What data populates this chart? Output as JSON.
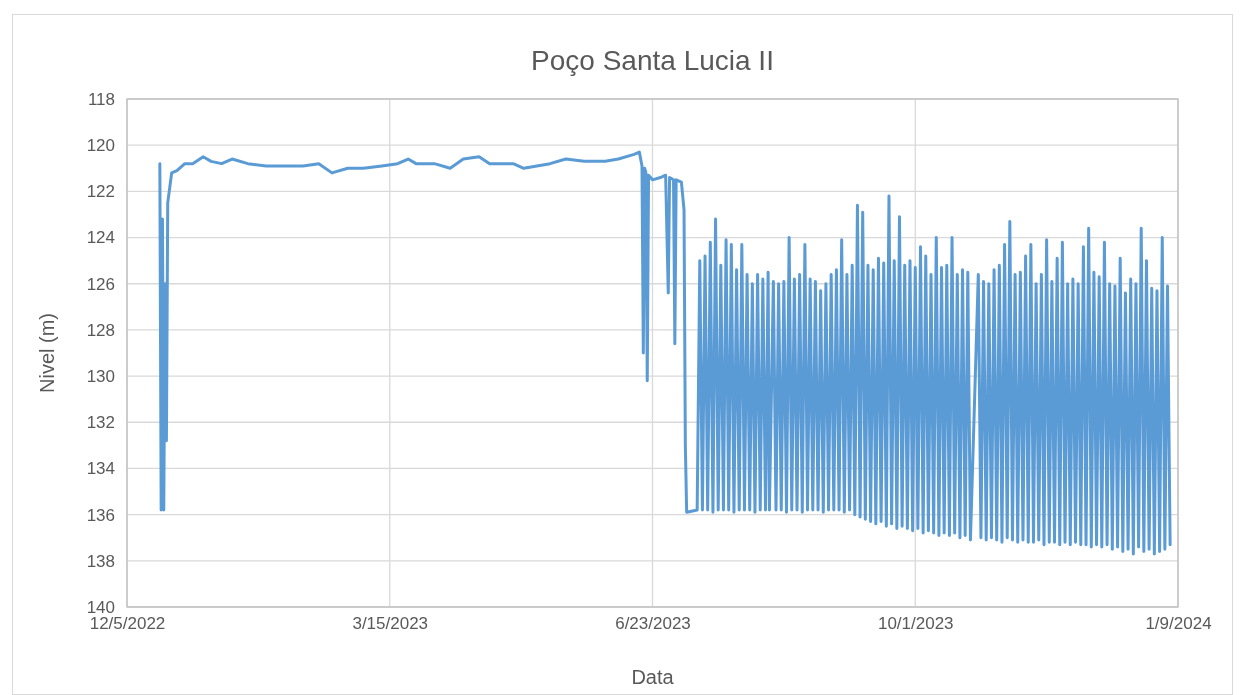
{
  "chart_data": {
    "type": "line",
    "title": "Poço Santa Lucia II",
    "xlabel": "Data",
    "ylabel": "Nivel (m)",
    "xlim": [
      "2022-12-05",
      "2024-01-09"
    ],
    "xticks": [
      {
        "value": "2022-12-05",
        "label": "12/5/2022"
      },
      {
        "value": "2023-03-15",
        "label": "3/15/2023"
      },
      {
        "value": "2023-06-23",
        "label": "6/23/2023"
      },
      {
        "value": "2023-10-01",
        "label": "10/1/2023"
      },
      {
        "value": "2024-01-09",
        "label": "1/9/2024"
      }
    ],
    "ylim": [
      140,
      118
    ],
    "yticks": [
      118,
      120,
      122,
      124,
      126,
      128,
      130,
      132,
      134,
      136,
      138,
      140
    ],
    "grid": true,
    "marker": "none",
    "line_style": "solid",
    "series": [
      {
        "color": "#5b9bd5",
        "x": [
          "2022-12-17T12:00",
          "2022-12-18T00:00",
          "2022-12-18T12:00",
          "2022-12-19T00:00",
          "2022-12-19T12:00",
          "2022-12-20T00:00",
          "2022-12-20T12:00",
          "2022-12-22",
          "2022-12-24",
          "2022-12-27",
          "2022-12-30",
          "2023-01-03",
          "2023-01-06",
          "2023-01-10",
          "2023-01-14",
          "2023-01-20",
          "2023-01-27",
          "2023-02-03",
          "2023-02-10",
          "2023-02-16",
          "2023-02-21",
          "2023-02-27",
          "2023-03-05",
          "2023-03-12",
          "2023-03-18",
          "2023-03-22",
          "2023-03-25",
          "2023-04-01",
          "2023-04-07",
          "2023-04-12",
          "2023-04-18",
          "2023-04-22",
          "2023-05-01",
          "2023-05-05",
          "2023-05-15",
          "2023-05-21",
          "2023-05-28",
          "2023-06-05",
          "2023-06-10",
          "2023-06-16",
          "2023-06-18",
          "2023-06-19",
          "2023-06-19T12:00",
          "2023-06-20",
          "2023-06-20T12:00",
          "2023-06-21",
          "2023-06-21T12:00",
          "2023-06-23",
          "2023-06-26",
          "2023-06-28",
          "2023-06-29",
          "2023-06-29T12:00",
          "2023-07-01",
          "2023-07-01T12:00",
          "2023-07-02",
          "2023-07-04",
          "2023-07-05",
          "2023-07-05T12:00",
          "2023-07-06",
          "2023-07-10",
          "2023-07-11",
          "2023-07-12",
          "2023-07-13",
          "2023-07-14",
          "2023-07-15",
          "2023-07-16",
          "2023-07-17",
          "2023-07-18",
          "2023-07-19",
          "2023-07-20",
          "2023-07-21",
          "2023-07-22",
          "2023-07-23",
          "2023-07-24",
          "2023-07-25",
          "2023-07-26",
          "2023-07-27",
          "2023-07-28",
          "2023-07-29",
          "2023-07-30",
          "2023-07-31",
          "2023-08-01",
          "2023-08-02",
          "2023-08-03",
          "2023-08-04",
          "2023-08-05",
          "2023-08-06",
          "2023-08-06T12:00",
          "2023-08-08",
          "2023-08-09",
          "2023-08-10",
          "2023-08-11",
          "2023-08-12",
          "2023-08-13",
          "2023-08-14",
          "2023-08-15",
          "2023-08-16",
          "2023-08-17",
          "2023-08-18",
          "2023-08-19",
          "2023-08-20",
          "2023-08-21",
          "2023-08-22",
          "2023-08-23",
          "2023-08-24",
          "2023-08-25",
          "2023-08-26",
          "2023-08-27",
          "2023-08-28",
          "2023-08-29",
          "2023-08-30",
          "2023-08-31",
          "2023-09-01",
          "2023-09-02",
          "2023-09-03",
          "2023-09-04",
          "2023-09-05",
          "2023-09-06",
          "2023-09-07",
          "2023-09-08",
          "2023-09-09",
          "2023-09-10",
          "2023-09-11",
          "2023-09-12",
          "2023-09-13",
          "2023-09-14",
          "2023-09-15",
          "2023-09-16",
          "2023-09-17",
          "2023-09-18",
          "2023-09-19",
          "2023-09-20",
          "2023-09-21",
          "2023-09-22",
          "2023-09-23",
          "2023-09-24",
          "2023-09-25",
          "2023-09-26",
          "2023-09-27",
          "2023-09-28",
          "2023-09-29",
          "2023-09-30",
          "2023-10-01",
          "2023-10-02",
          "2023-10-03",
          "2023-10-04",
          "2023-10-05",
          "2023-10-06",
          "2023-10-07",
          "2023-10-08",
          "2023-10-09",
          "2023-10-10",
          "2023-10-11",
          "2023-10-12",
          "2023-10-13",
          "2023-10-14",
          "2023-10-15",
          "2023-10-16",
          "2023-10-17",
          "2023-10-18",
          "2023-10-19",
          "2023-10-20",
          "2023-10-21",
          "2023-10-22",
          "2023-10-25",
          "2023-10-26",
          "2023-10-27",
          "2023-10-28",
          "2023-10-29",
          "2023-10-30",
          "2023-10-31",
          "2023-11-01",
          "2023-11-02",
          "2023-11-03",
          "2023-11-04",
          "2023-11-05",
          "2023-11-06",
          "2023-11-07",
          "2023-11-08",
          "2023-11-09",
          "2023-11-10",
          "2023-11-11",
          "2023-11-12",
          "2023-11-13",
          "2023-11-14",
          "2023-11-15",
          "2023-11-16",
          "2023-11-17",
          "2023-11-18",
          "2023-11-19",
          "2023-11-20",
          "2023-11-21",
          "2023-11-22",
          "2023-11-23",
          "2023-11-24",
          "2023-11-25",
          "2023-11-26",
          "2023-11-27",
          "2023-11-28",
          "2023-11-29",
          "2023-11-30",
          "2023-12-01",
          "2023-12-02",
          "2023-12-03",
          "2023-12-04",
          "2023-12-05",
          "2023-12-06",
          "2023-12-07",
          "2023-12-08",
          "2023-12-09",
          "2023-12-10",
          "2023-12-11",
          "2023-12-12",
          "2023-12-13",
          "2023-12-14",
          "2023-12-15",
          "2023-12-16",
          "2023-12-17",
          "2023-12-18",
          "2023-12-19",
          "2023-12-20",
          "2023-12-21",
          "2023-12-22",
          "2023-12-23",
          "2023-12-24",
          "2023-12-25",
          "2023-12-26",
          "2023-12-27",
          "2023-12-28",
          "2023-12-29",
          "2023-12-30",
          "2023-12-31",
          "2024-01-01",
          "2024-01-02",
          "2024-01-03",
          "2024-01-04",
          "2024-01-05",
          "2024-01-06"
        ],
        "values": [
          120.8,
          135.8,
          123.2,
          135.8,
          126.0,
          132.8,
          122.5,
          121.2,
          121.1,
          120.8,
          120.8,
          120.5,
          120.7,
          120.8,
          120.6,
          120.8,
          120.9,
          120.9,
          120.9,
          120.8,
          121.2,
          121.0,
          121.0,
          120.9,
          120.8,
          120.6,
          120.8,
          120.8,
          121.0,
          120.6,
          120.5,
          120.8,
          120.8,
          121.0,
          120.8,
          120.6,
          120.7,
          120.7,
          120.6,
          120.4,
          120.3,
          120.9,
          129.0,
          121.0,
          121.2,
          130.2,
          121.3,
          121.5,
          121.4,
          121.3,
          126.4,
          121.4,
          121.5,
          128.6,
          121.5,
          121.6,
          122.8,
          133.0,
          135.9,
          135.8,
          125.0,
          135.8,
          124.8,
          135.8,
          124.2,
          135.9,
          123.2,
          135.8,
          125.2,
          135.8,
          124.1,
          135.8,
          124.3,
          135.9,
          125.4,
          135.8,
          124.3,
          135.8,
          125.6,
          135.8,
          126.0,
          135.9,
          125.6,
          135.8,
          125.8,
          135.8,
          125.5,
          135.8,
          125.9,
          135.8,
          126.0,
          135.8,
          125.9,
          135.9,
          124.0,
          135.8,
          125.8,
          135.8,
          125.6,
          135.9,
          124.3,
          135.8,
          125.8,
          135.8,
          125.9,
          135.8,
          126.3,
          135.9,
          126.0,
          135.8,
          125.6,
          135.8,
          125.4,
          135.8,
          124.1,
          135.9,
          125.6,
          135.8,
          125.2,
          136.0,
          122.6,
          136.1,
          122.9,
          136.2,
          125.2,
          136.3,
          125.4,
          136.4,
          124.9,
          136.3,
          125.1,
          136.5,
          122.2,
          136.4,
          125.0,
          136.6,
          123.1,
          136.5,
          125.2,
          136.6,
          125.0,
          136.7,
          125.3,
          136.6,
          124.4,
          136.8,
          124.8,
          136.7,
          125.6,
          136.8,
          124.0,
          136.9,
          125.3,
          136.8,
          125.2,
          136.9,
          124.0,
          136.8,
          125.6,
          137.0,
          125.4,
          136.9,
          125.5,
          137.1,
          125.6,
          137.0,
          125.9,
          137.1,
          126.0,
          137.0,
          125.4,
          137.1,
          125.2,
          137.2,
          124.3,
          137.0,
          123.3,
          137.1,
          125.6,
          137.2,
          125.5,
          137.1,
          124.8,
          137.2,
          124.3,
          137.2,
          126.0,
          137.1,
          125.6,
          137.3,
          124.1,
          137.2,
          125.9,
          137.2,
          124.9,
          137.3,
          124.2,
          137.2,
          126.0,
          137.3,
          125.8,
          137.2,
          126.0,
          137.3,
          124.4,
          137.3,
          123.6,
          137.4,
          125.5,
          137.3,
          125.7,
          137.4,
          124.2,
          137.3,
          126.0,
          137.5,
          126.1,
          137.4,
          124.9,
          137.6,
          126.4,
          137.5,
          125.8,
          137.7,
          126.0,
          137.4,
          123.6,
          137.6,
          125.0,
          137.5,
          126.2,
          137.7,
          126.3,
          137.6,
          124.0,
          137.5,
          126.1,
          137.3
        ]
      }
    ]
  }
}
